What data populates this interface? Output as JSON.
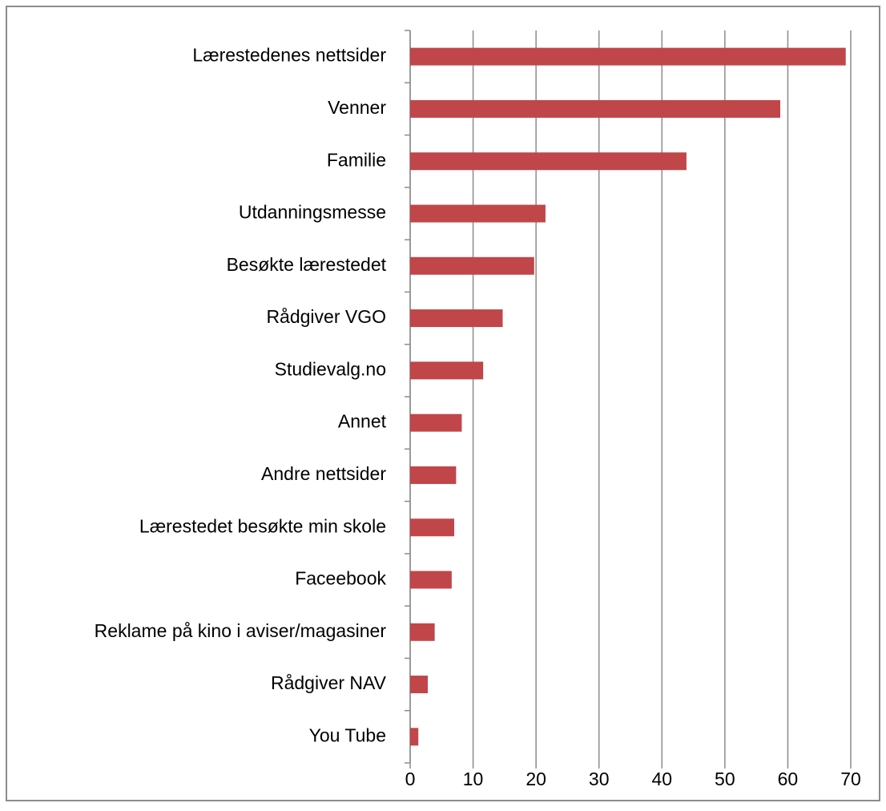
{
  "chart_data": {
    "type": "bar",
    "orientation": "horizontal",
    "categories": [
      "Lærestedenes nettsider",
      "Venner",
      "Familie",
      "Utdanningsmesse",
      "Besøkte lærestedet",
      "Rådgiver VGO",
      "Studievalg.no",
      "Annet",
      "Andre nettsider",
      "Lærestedet besøkte min skole",
      "Faceebook",
      "Reklame på kino i aviser/magasiner",
      "Rådgiver NAV",
      "You Tube"
    ],
    "values": [
      69.2,
      58.8,
      43.9,
      21.5,
      19.7,
      14.7,
      11.6,
      8.2,
      7.3,
      7.0,
      6.6,
      3.9,
      2.8,
      1.3
    ],
    "color": "#c0464a",
    "xlim": [
      0,
      70
    ],
    "xticks": [
      0,
      10,
      20,
      30,
      40,
      50,
      60,
      70
    ],
    "grid": true
  }
}
